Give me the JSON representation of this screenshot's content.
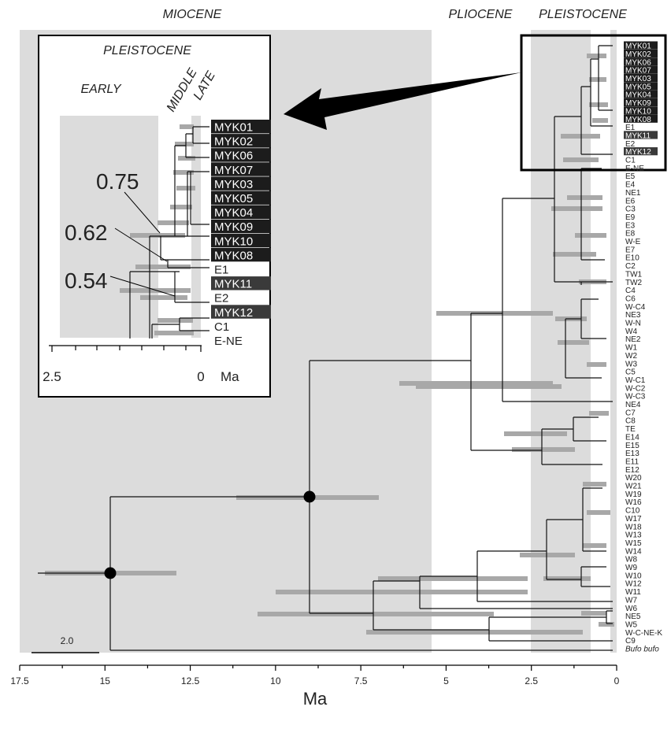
{
  "periods": {
    "miocene": "MIOCENE",
    "pliocene": "PLIOCENE",
    "pleistocene": "PLEISTOCENE"
  },
  "axis": {
    "ticks": [
      "17.5",
      "15",
      "12.5",
      "10",
      "7.5",
      "5",
      "2.5",
      "0"
    ],
    "title": "Ma"
  },
  "scale_bar": {
    "label": "2.0",
    "value": 2.0
  },
  "tips": [
    {
      "label": "MYK01",
      "hl": true
    },
    {
      "label": "MYK02",
      "hl": true
    },
    {
      "label": "MYK06",
      "hl": true
    },
    {
      "label": "MYK07",
      "hl": true
    },
    {
      "label": "MYK03",
      "hl": true
    },
    {
      "label": "MYK05",
      "hl": true
    },
    {
      "label": "MYK04",
      "hl": true
    },
    {
      "label": "MYK09",
      "hl": true
    },
    {
      "label": "MYK10",
      "hl": true
    },
    {
      "label": "MYK08",
      "hl": true
    },
    {
      "label": "E1"
    },
    {
      "label": "MYK11",
      "hl": true
    },
    {
      "label": "E2"
    },
    {
      "label": "MYK12",
      "hl": true
    },
    {
      "label": "C1"
    },
    {
      "label": "E-NE"
    },
    {
      "label": "E5"
    },
    {
      "label": "E4"
    },
    {
      "label": "NE1"
    },
    {
      "label": "E6"
    },
    {
      "label": "C3"
    },
    {
      "label": "E9"
    },
    {
      "label": "E3"
    },
    {
      "label": "E8"
    },
    {
      "label": "W-E"
    },
    {
      "label": "E7"
    },
    {
      "label": "E10"
    },
    {
      "label": "C2"
    },
    {
      "label": "TW1"
    },
    {
      "label": "TW2"
    },
    {
      "label": "C4"
    },
    {
      "label": "C6"
    },
    {
      "label": "W-C4"
    },
    {
      "label": "NE3"
    },
    {
      "label": "W-N"
    },
    {
      "label": "W4"
    },
    {
      "label": "NE2"
    },
    {
      "label": "W1"
    },
    {
      "label": "W2"
    },
    {
      "label": "W3"
    },
    {
      "label": "C5"
    },
    {
      "label": "W-C1"
    },
    {
      "label": "W-C2"
    },
    {
      "label": "W-C3"
    },
    {
      "label": "NE4"
    },
    {
      "label": "C7"
    },
    {
      "label": "C8"
    },
    {
      "label": "TE"
    },
    {
      "label": "E14"
    },
    {
      "label": "E15"
    },
    {
      "label": "E13"
    },
    {
      "label": "E11"
    },
    {
      "label": "E12"
    },
    {
      "label": "W20"
    },
    {
      "label": "W21"
    },
    {
      "label": "W19"
    },
    {
      "label": "W16"
    },
    {
      "label": "C10"
    },
    {
      "label": "W17"
    },
    {
      "label": "W18"
    },
    {
      "label": "W13"
    },
    {
      "label": "W15"
    },
    {
      "label": "W14"
    },
    {
      "label": "W8"
    },
    {
      "label": "W9"
    },
    {
      "label": "W10"
    },
    {
      "label": "W12"
    },
    {
      "label": "W11"
    },
    {
      "label": "W7"
    },
    {
      "label": "W6"
    },
    {
      "label": "NE5"
    },
    {
      "label": "W5"
    },
    {
      "label": "W-C-NE-K"
    },
    {
      "label": "C9"
    },
    {
      "label": "Bufo bufo",
      "italic": true
    }
  ],
  "inset": {
    "title": "PLEISTOCENE",
    "subperiods": [
      "EARLY",
      "MIDDLE",
      "LATE"
    ],
    "tips": [
      {
        "label": "MYK01",
        "hl": true
      },
      {
        "label": "MYK02",
        "hl": true
      },
      {
        "label": "MYK06",
        "hl": true
      },
      {
        "label": "MYK07",
        "hl": true
      },
      {
        "label": "MYK03",
        "hl": true
      },
      {
        "label": "MYK05",
        "hl": true
      },
      {
        "label": "MYK04",
        "hl": true
      },
      {
        "label": "MYK09",
        "hl": true
      },
      {
        "label": "MYK10",
        "hl": true
      },
      {
        "label": "MYK08",
        "hl": true
      },
      {
        "label": "E1"
      },
      {
        "label": "MYK11",
        "hl": true
      },
      {
        "label": "E2"
      },
      {
        "label": "MYK12",
        "hl": true
      },
      {
        "label": "C1"
      },
      {
        "label": "E-NE"
      }
    ],
    "node_ages": [
      "0.75",
      "0.62",
      "0.54"
    ],
    "axis": {
      "left": "2.5",
      "right": "0",
      "unit": "Ma"
    }
  },
  "colors": {
    "band": "#dcdcdc",
    "bar": "#a8a8a8",
    "line": "#111111",
    "highlight": "#1c1c1c",
    "highlight2": "#3a3a3a"
  }
}
